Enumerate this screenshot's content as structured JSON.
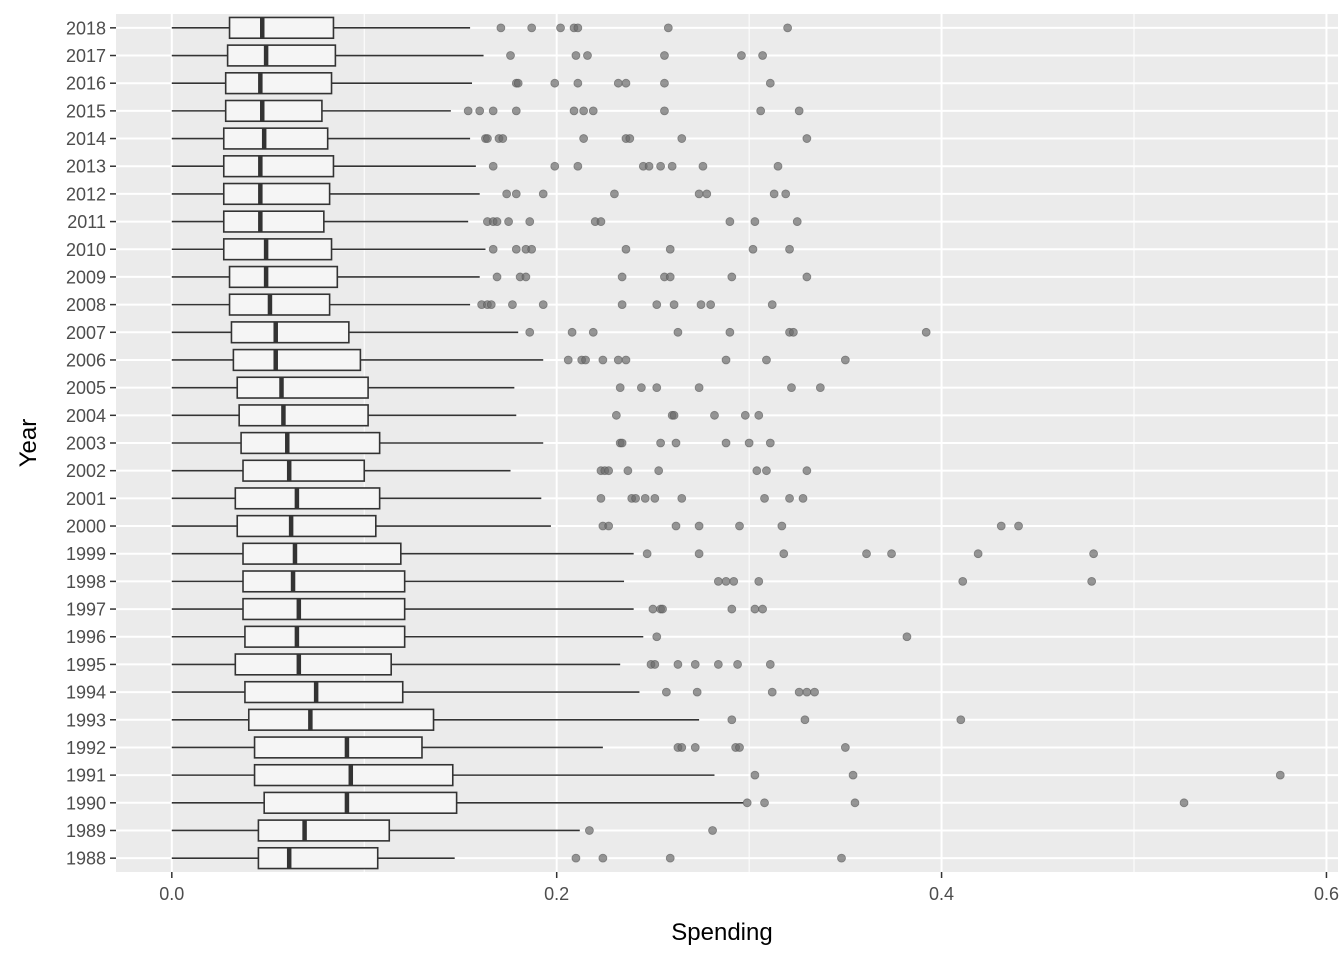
{
  "chart_data": {
    "type": "boxplot",
    "orientation": "horizontal",
    "xlabel": "Spending",
    "ylabel": "Year",
    "xlim": [
      -0.029,
      0.606
    ],
    "x_ticks": [
      0.0,
      0.2,
      0.4,
      0.6
    ],
    "x_tick_labels": [
      "0.0",
      "0.2",
      "0.4",
      "0.6"
    ],
    "grid": true,
    "colors": {
      "panel": "#ebebeb",
      "grid": "#ffffff",
      "box_fill": "#f5f5f5",
      "box_line": "#333333",
      "outlier": "#6b6b6b"
    },
    "categories": [
      "1988",
      "1989",
      "1990",
      "1991",
      "1992",
      "1993",
      "1994",
      "1995",
      "1996",
      "1997",
      "1998",
      "1999",
      "2000",
      "2001",
      "2002",
      "2003",
      "2004",
      "2005",
      "2006",
      "2007",
      "2008",
      "2009",
      "2010",
      "2011",
      "2012",
      "2013",
      "2014",
      "2015",
      "2016",
      "2017",
      "2018"
    ],
    "boxes": [
      {
        "year": "1988",
        "min": 0.0,
        "q1": 0.045,
        "median": 0.061,
        "q3": 0.107,
        "max": 0.147,
        "outliers": [
          0.21,
          0.224,
          0.259,
          0.348
        ]
      },
      {
        "year": "1989",
        "min": 0.0,
        "q1": 0.045,
        "median": 0.069,
        "q3": 0.113,
        "max": 0.212,
        "outliers": [
          0.217,
          0.281
        ]
      },
      {
        "year": "1990",
        "min": 0.0,
        "q1": 0.048,
        "median": 0.091,
        "q3": 0.148,
        "max": 0.297,
        "outliers": [
          0.299,
          0.308,
          0.355,
          0.526
        ]
      },
      {
        "year": "1991",
        "min": 0.0,
        "q1": 0.043,
        "median": 0.093,
        "q3": 0.146,
        "max": 0.282,
        "outliers": [
          0.303,
          0.354,
          0.576
        ]
      },
      {
        "year": "1992",
        "min": 0.0,
        "q1": 0.043,
        "median": 0.091,
        "q3": 0.13,
        "max": 0.224,
        "outliers": [
          0.263,
          0.265,
          0.272,
          0.293,
          0.295,
          0.35
        ]
      },
      {
        "year": "1993",
        "min": 0.0,
        "q1": 0.04,
        "median": 0.072,
        "q3": 0.136,
        "max": 0.274,
        "outliers": [
          0.291,
          0.329,
          0.41
        ]
      },
      {
        "year": "1994",
        "min": 0.0,
        "q1": 0.038,
        "median": 0.075,
        "q3": 0.12,
        "max": 0.243,
        "outliers": [
          0.257,
          0.273,
          0.312,
          0.326,
          0.33,
          0.334
        ]
      },
      {
        "year": "1995",
        "min": 0.0,
        "q1": 0.033,
        "median": 0.066,
        "q3": 0.114,
        "max": 0.233,
        "outliers": [
          0.249,
          0.251,
          0.263,
          0.272,
          0.284,
          0.294,
          0.311
        ]
      },
      {
        "year": "1996",
        "min": 0.0,
        "q1": 0.038,
        "median": 0.065,
        "q3": 0.121,
        "max": 0.245,
        "outliers": [
          0.252,
          0.382
        ]
      },
      {
        "year": "1997",
        "min": 0.0,
        "q1": 0.037,
        "median": 0.066,
        "q3": 0.121,
        "max": 0.24,
        "outliers": [
          0.25,
          0.254,
          0.255,
          0.291,
          0.303,
          0.307
        ]
      },
      {
        "year": "1998",
        "min": 0.0,
        "q1": 0.037,
        "median": 0.063,
        "q3": 0.121,
        "max": 0.235,
        "outliers": [
          0.284,
          0.288,
          0.292,
          0.305,
          0.411,
          0.478
        ]
      },
      {
        "year": "1999",
        "min": 0.0,
        "q1": 0.037,
        "median": 0.064,
        "q3": 0.119,
        "max": 0.24,
        "outliers": [
          0.247,
          0.274,
          0.318,
          0.361,
          0.374,
          0.419,
          0.479
        ]
      },
      {
        "year": "2000",
        "min": 0.0,
        "q1": 0.034,
        "median": 0.062,
        "q3": 0.106,
        "max": 0.197,
        "outliers": [
          0.224,
          0.227,
          0.262,
          0.274,
          0.295,
          0.317,
          0.431,
          0.44
        ]
      },
      {
        "year": "2001",
        "min": 0.0,
        "q1": 0.033,
        "median": 0.065,
        "q3": 0.108,
        "max": 0.192,
        "outliers": [
          0.223,
          0.239,
          0.241,
          0.246,
          0.251,
          0.265,
          0.308,
          0.321,
          0.328
        ]
      },
      {
        "year": "2002",
        "min": 0.0,
        "q1": 0.037,
        "median": 0.061,
        "q3": 0.1,
        "max": 0.176,
        "outliers": [
          0.223,
          0.225,
          0.227,
          0.237,
          0.253,
          0.304,
          0.309,
          0.33
        ]
      },
      {
        "year": "2003",
        "min": 0.0,
        "q1": 0.036,
        "median": 0.06,
        "q3": 0.108,
        "max": 0.193,
        "outliers": [
          0.233,
          0.234,
          0.254,
          0.262,
          0.288,
          0.3,
          0.311
        ]
      },
      {
        "year": "2004",
        "min": 0.0,
        "q1": 0.035,
        "median": 0.058,
        "q3": 0.102,
        "max": 0.179,
        "outliers": [
          0.231,
          0.26,
          0.261,
          0.282,
          0.298,
          0.305
        ]
      },
      {
        "year": "2005",
        "min": 0.0,
        "q1": 0.034,
        "median": 0.057,
        "q3": 0.102,
        "max": 0.178,
        "outliers": [
          0.233,
          0.244,
          0.252,
          0.274,
          0.322,
          0.337
        ]
      },
      {
        "year": "2006",
        "min": 0.0,
        "q1": 0.032,
        "median": 0.054,
        "q3": 0.098,
        "max": 0.193,
        "outliers": [
          0.206,
          0.213,
          0.215,
          0.224,
          0.232,
          0.236,
          0.288,
          0.309,
          0.35
        ]
      },
      {
        "year": "2007",
        "min": 0.0,
        "q1": 0.031,
        "median": 0.054,
        "q3": 0.092,
        "max": 0.18,
        "outliers": [
          0.186,
          0.208,
          0.219,
          0.263,
          0.29,
          0.321,
          0.323,
          0.392
        ]
      },
      {
        "year": "2008",
        "min": 0.0,
        "q1": 0.03,
        "median": 0.051,
        "q3": 0.082,
        "max": 0.155,
        "outliers": [
          0.161,
          0.164,
          0.166,
          0.177,
          0.193,
          0.234,
          0.252,
          0.261,
          0.275,
          0.28,
          0.312
        ]
      },
      {
        "year": "2009",
        "min": 0.0,
        "q1": 0.03,
        "median": 0.049,
        "q3": 0.086,
        "max": 0.16,
        "outliers": [
          0.169,
          0.181,
          0.184,
          0.234,
          0.256,
          0.259,
          0.291,
          0.33
        ]
      },
      {
        "year": "2010",
        "min": 0.0,
        "q1": 0.027,
        "median": 0.049,
        "q3": 0.083,
        "max": 0.163,
        "outliers": [
          0.167,
          0.179,
          0.184,
          0.187,
          0.236,
          0.259,
          0.302,
          0.321
        ]
      },
      {
        "year": "2011",
        "min": 0.0,
        "q1": 0.027,
        "median": 0.046,
        "q3": 0.079,
        "max": 0.154,
        "outliers": [
          0.164,
          0.167,
          0.169,
          0.175,
          0.186,
          0.22,
          0.223,
          0.29,
          0.303,
          0.325
        ]
      },
      {
        "year": "2012",
        "min": 0.0,
        "q1": 0.027,
        "median": 0.046,
        "q3": 0.082,
        "max": 0.16,
        "outliers": [
          0.174,
          0.179,
          0.193,
          0.23,
          0.274,
          0.278,
          0.313,
          0.319
        ]
      },
      {
        "year": "2013",
        "min": 0.0,
        "q1": 0.027,
        "median": 0.046,
        "q3": 0.084,
        "max": 0.158,
        "outliers": [
          0.167,
          0.199,
          0.211,
          0.245,
          0.248,
          0.254,
          0.26,
          0.276,
          0.315
        ]
      },
      {
        "year": "2014",
        "min": 0.0,
        "q1": 0.027,
        "median": 0.048,
        "q3": 0.081,
        "max": 0.155,
        "outliers": [
          0.163,
          0.164,
          0.17,
          0.172,
          0.214,
          0.236,
          0.238,
          0.265,
          0.33
        ]
      },
      {
        "year": "2015",
        "min": 0.0,
        "q1": 0.028,
        "median": 0.047,
        "q3": 0.078,
        "max": 0.145,
        "outliers": [
          0.154,
          0.16,
          0.167,
          0.179,
          0.209,
          0.214,
          0.219,
          0.256,
          0.306,
          0.326
        ]
      },
      {
        "year": "2016",
        "min": 0.0,
        "q1": 0.028,
        "median": 0.046,
        "q3": 0.083,
        "max": 0.156,
        "outliers": [
          0.179,
          0.18,
          0.199,
          0.211,
          0.232,
          0.236,
          0.256,
          0.311
        ]
      },
      {
        "year": "2017",
        "min": 0.0,
        "q1": 0.029,
        "median": 0.049,
        "q3": 0.085,
        "max": 0.162,
        "outliers": [
          0.176,
          0.21,
          0.216,
          0.256,
          0.296,
          0.307
        ]
      },
      {
        "year": "2018",
        "min": 0.0,
        "q1": 0.03,
        "median": 0.047,
        "q3": 0.084,
        "max": 0.155,
        "outliers": [
          0.171,
          0.187,
          0.202,
          0.209,
          0.211,
          0.258,
          0.32
        ]
      }
    ]
  }
}
